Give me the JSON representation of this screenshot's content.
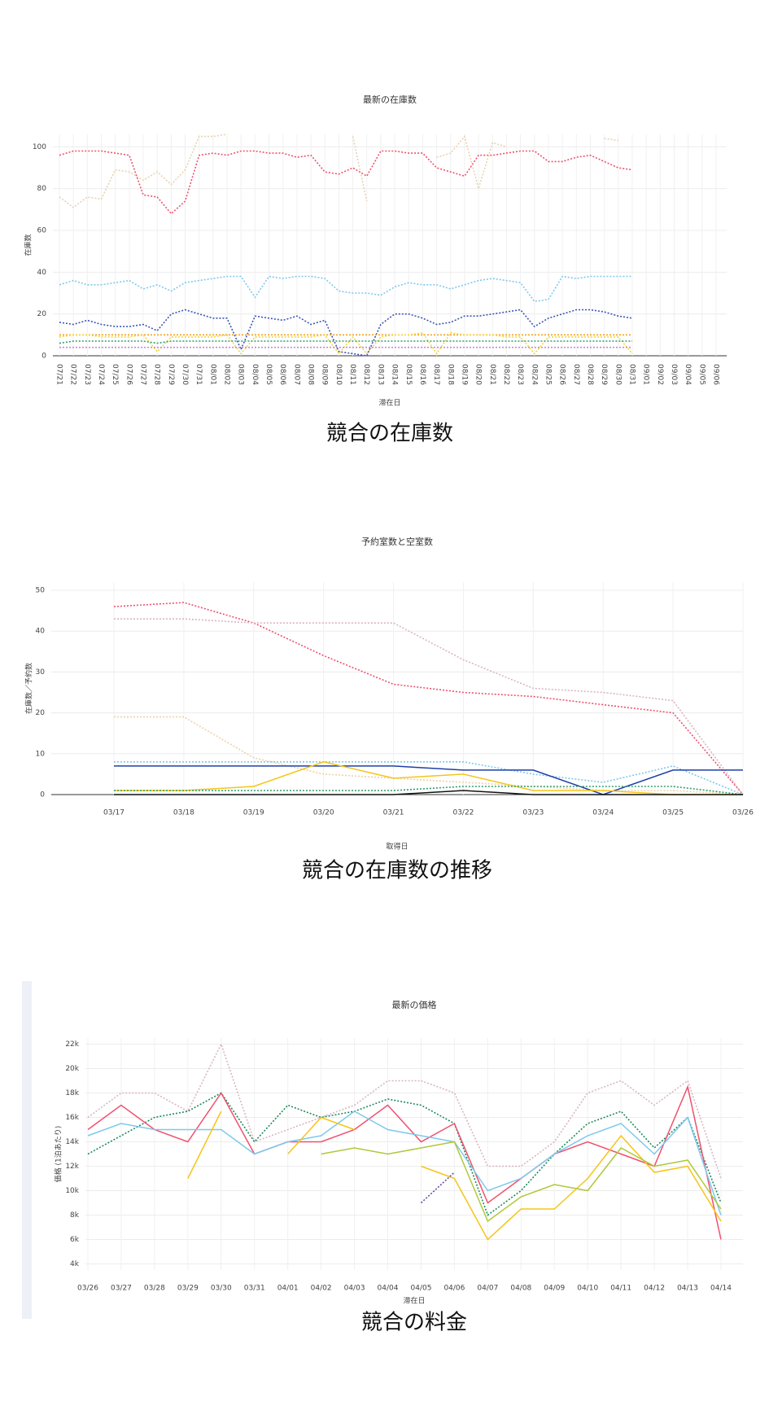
{
  "chart_data": [
    {
      "type": "line",
      "title": "最新の在庫数",
      "caption": "競合の在庫数",
      "ylabel": "在庫数",
      "xlabel": "滞在日",
      "categories": [
        "07/21",
        "07/22",
        "07/23",
        "07/24",
        "07/25",
        "07/26",
        "07/27",
        "07/28",
        "07/29",
        "07/30",
        "07/31",
        "08/01",
        "08/02",
        "08/03",
        "08/04",
        "08/05",
        "08/06",
        "08/07",
        "08/08",
        "08/09",
        "08/10",
        "08/11",
        "08/12",
        "08/13",
        "08/14",
        "08/15",
        "08/16",
        "08/17",
        "08/18",
        "08/19",
        "08/20",
        "08/21",
        "08/22",
        "08/23",
        "08/24",
        "08/25",
        "08/26",
        "08/27",
        "08/28",
        "08/29",
        "08/30",
        "08/31",
        "09/01",
        "09/02",
        "09/03",
        "09/04",
        "09/05",
        "09/06"
      ],
      "ylim": [
        0,
        106
      ],
      "yticks": [
        0,
        20,
        40,
        60,
        80,
        100
      ],
      "grid": true,
      "series": [
        {
          "color": "#f0506e",
          "dash": true,
          "values": [
            96,
            98,
            98,
            98,
            97,
            96,
            77,
            76,
            68,
            74,
            96,
            97,
            96,
            98,
            98,
            97,
            97,
            95,
            96,
            88,
            87,
            90,
            86,
            98,
            98,
            97,
            97,
            90,
            88,
            86,
            96,
            96,
            97,
            98,
            98,
            93,
            93,
            95,
            96,
            93,
            90,
            89,
            null,
            null,
            null,
            null,
            null,
            null
          ]
        },
        {
          "color": "#e8d2b0",
          "dash": true,
          "values": [
            76,
            71,
            76,
            75,
            89,
            88,
            84,
            88,
            82,
            89,
            105,
            105,
            106,
            null,
            null,
            null,
            null,
            null,
            null,
            null,
            null,
            105,
            74,
            null,
            null,
            null,
            null,
            95,
            97,
            105,
            80,
            102,
            100,
            null,
            null,
            null,
            null,
            null,
            null,
            104,
            103,
            null,
            null,
            null,
            null,
            null,
            null,
            null
          ]
        },
        {
          "color": "#7ec8ee",
          "dash": true,
          "values": [
            34,
            36,
            34,
            34,
            35,
            36,
            32,
            34,
            31,
            35,
            36,
            37,
            38,
            38,
            28,
            38,
            37,
            38,
            38,
            37,
            31,
            30,
            30,
            29,
            33,
            35,
            34,
            34,
            32,
            34,
            36,
            37,
            36,
            35,
            26,
            27,
            38,
            37,
            38,
            38,
            38,
            38,
            null,
            null,
            null,
            null,
            null,
            null
          ]
        },
        {
          "color": "#3a55b4",
          "dash": true,
          "values": [
            16,
            15,
            17,
            15,
            14,
            14,
            15,
            12,
            20,
            22,
            20,
            18,
            18,
            3,
            19,
            18,
            17,
            19,
            15,
            17,
            2,
            1,
            0,
            15,
            20,
            20,
            18,
            15,
            16,
            19,
            19,
            20,
            21,
            22,
            14,
            18,
            20,
            22,
            22,
            21,
            19,
            18,
            null,
            null,
            null,
            null,
            null,
            null
          ]
        },
        {
          "color": "#f2a21c",
          "dash": true,
          "values": [
            10,
            10,
            10,
            10,
            10,
            10,
            10,
            10,
            10,
            10,
            10,
            10,
            10,
            10,
            10,
            10,
            10,
            10,
            10,
            10,
            10,
            10,
            10,
            10,
            10,
            10,
            10,
            10,
            10,
            10,
            10,
            10,
            10,
            10,
            10,
            10,
            10,
            10,
            10,
            10,
            10,
            10,
            null,
            null,
            null,
            null,
            null,
            null
          ]
        },
        {
          "color": "#f5d542",
          "dash": true,
          "values": [
            9,
            10,
            10,
            9,
            9,
            9,
            10,
            2,
            9,
            9,
            9,
            9,
            10,
            1,
            9,
            9,
            9,
            9,
            9,
            10,
            1,
            9,
            1,
            9,
            10,
            10,
            11,
            1,
            11,
            10,
            10,
            10,
            9,
            9,
            1,
            9,
            9,
            9,
            9,
            9,
            9,
            1,
            null,
            null,
            null,
            null,
            null,
            null
          ]
        },
        {
          "color": "#2e9e6a",
          "dash": true,
          "values": [
            6,
            7,
            7,
            7,
            7,
            7,
            7,
            6,
            7,
            7,
            7,
            7,
            7,
            7,
            7,
            7,
            7,
            7,
            7,
            7,
            7,
            7,
            7,
            7,
            7,
            7,
            7,
            7,
            7,
            7,
            7,
            7,
            7,
            7,
            7,
            7,
            7,
            7,
            7,
            7,
            7,
            7,
            null,
            null,
            null,
            null,
            null,
            null
          ]
        },
        {
          "color": "#c08ad8",
          "dash": true,
          "values": [
            4,
            4,
            4,
            4,
            4,
            4,
            4,
            4,
            4,
            4,
            4,
            4,
            4,
            4,
            4,
            4,
            4,
            4,
            4,
            4,
            4,
            4,
            4,
            4,
            4,
            4,
            4,
            4,
            4,
            4,
            4,
            4,
            4,
            4,
            4,
            4,
            4,
            4,
            4,
            4,
            4,
            4,
            null,
            null,
            null,
            null,
            null,
            null
          ]
        }
      ]
    },
    {
      "type": "line",
      "title": "予約室数と空室数",
      "caption": "競合の在庫数の推移",
      "ylabel": "在庫数／予約数",
      "xlabel": "取得日",
      "categories": [
        "03/17",
        "03/18",
        "03/19",
        "03/20",
        "03/21",
        "03/22",
        "03/23",
        "03/24",
        "03/25",
        "03/26"
      ],
      "ylim": [
        0,
        52
      ],
      "yticks": [
        0,
        10,
        20,
        30,
        40,
        50
      ],
      "grid": true,
      "series": [
        {
          "color": "#f0506e",
          "dash": true,
          "values": [
            46,
            47,
            42,
            34,
            27,
            25,
            24,
            22,
            20,
            0
          ]
        },
        {
          "color": "#d9b6c0",
          "dash": true,
          "values": [
            43,
            43,
            42,
            42,
            42,
            33,
            26,
            25,
            23,
            0
          ]
        },
        {
          "color": "#eed2a8",
          "dash": true,
          "values": [
            19,
            19,
            9,
            5,
            4,
            3,
            2,
            1,
            1,
            0
          ]
        },
        {
          "color": "#7ec8ee",
          "dash": true,
          "values": [
            8,
            8,
            8,
            8,
            8,
            8,
            5,
            3,
            7,
            0
          ]
        },
        {
          "color": "#1f3fa8",
          "dash": false,
          "values": [
            7,
            7,
            7,
            7,
            7,
            6,
            6,
            0,
            6,
            6
          ]
        },
        {
          "color": "#f5c518",
          "dash": false,
          "values": [
            1,
            1,
            2,
            8,
            4,
            5,
            1,
            1,
            0,
            0
          ]
        },
        {
          "color": "#2e9e6a",
          "dash": true,
          "values": [
            1,
            1,
            1,
            1,
            1,
            2,
            2,
            2,
            2,
            0
          ]
        },
        {
          "color": "#111111",
          "dash": false,
          "values": [
            0,
            0,
            0,
            0,
            0,
            1,
            0,
            0,
            0,
            0
          ]
        }
      ]
    },
    {
      "type": "line",
      "title": "最新の価格",
      "caption": "競合の料金",
      "ylabel": "価格 (1泊あたり)",
      "xlabel": "滞在日",
      "categories": [
        "03/26",
        "03/27",
        "03/28",
        "03/29",
        "03/30",
        "03/31",
        "04/01",
        "04/02",
        "04/03",
        "04/04",
        "04/05",
        "04/06",
        "04/07",
        "04/08",
        "04/09",
        "04/10",
        "04/11",
        "04/12",
        "04/13",
        "04/14"
      ],
      "ylim": [
        3500,
        22500
      ],
      "yticks": [
        {
          "value": 4000,
          "label": "4k"
        },
        {
          "value": 6000,
          "label": "6k"
        },
        {
          "value": 8000,
          "label": "8k"
        },
        {
          "value": 10000,
          "label": "10k"
        },
        {
          "value": 12000,
          "label": "12k"
        },
        {
          "value": 14000,
          "label": "14k"
        },
        {
          "value": 16000,
          "label": "16k"
        },
        {
          "value": 18000,
          "label": "18k"
        },
        {
          "value": 20000,
          "label": "20k"
        },
        {
          "value": 22000,
          "label": "22k"
        }
      ],
      "grid": true,
      "series": [
        {
          "color": "#d9b6c0",
          "dash": true,
          "values": [
            16000,
            18000,
            18000,
            16500,
            22000,
            14000,
            15000,
            16000,
            17000,
            19000,
            19000,
            18000,
            12000,
            12000,
            14000,
            18000,
            19000,
            17000,
            19000,
            11000
          ]
        },
        {
          "color": "#1f8a5a",
          "dash": true,
          "values": [
            13000,
            14500,
            16000,
            16500,
            18000,
            14000,
            17000,
            16000,
            16500,
            17500,
            17000,
            15500,
            8000,
            10000,
            13000,
            15500,
            16500,
            13500,
            16000,
            9000
          ]
        },
        {
          "color": "#f0506e",
          "dash": false,
          "values": [
            15000,
            17000,
            15000,
            14000,
            18000,
            13000,
            14000,
            14000,
            15000,
            17000,
            14000,
            15500,
            9000,
            11000,
            13000,
            14000,
            13000,
            12000,
            18500,
            6000
          ]
        },
        {
          "color": "#7ec8ee",
          "dash": false,
          "values": [
            14500,
            15500,
            15000,
            15000,
            15000,
            13000,
            14000,
            14500,
            16500,
            15000,
            14500,
            14000,
            10000,
            11000,
            13000,
            14500,
            15500,
            13000,
            16000,
            8000
          ]
        },
        {
          "color": "#f5c518",
          "dash": false,
          "values": [
            null,
            null,
            null,
            11000,
            16500,
            null,
            13000,
            16000,
            15000,
            null,
            12000,
            11000,
            6000,
            8500,
            8500,
            11000,
            14500,
            11500,
            12000,
            7500
          ]
        },
        {
          "color": "#b0c83a",
          "dash": false,
          "values": [
            null,
            null,
            null,
            null,
            null,
            null,
            null,
            13000,
            13500,
            13000,
            13500,
            14000,
            7500,
            9500,
            10500,
            10000,
            13500,
            12000,
            12500,
            8500
          ]
        },
        {
          "color": "#6a4aa8",
          "dash": true,
          "values": [
            null,
            null,
            null,
            null,
            null,
            null,
            null,
            null,
            null,
            null,
            9000,
            11500,
            null,
            null,
            null,
            null,
            null,
            null,
            null,
            null
          ]
        }
      ]
    }
  ]
}
